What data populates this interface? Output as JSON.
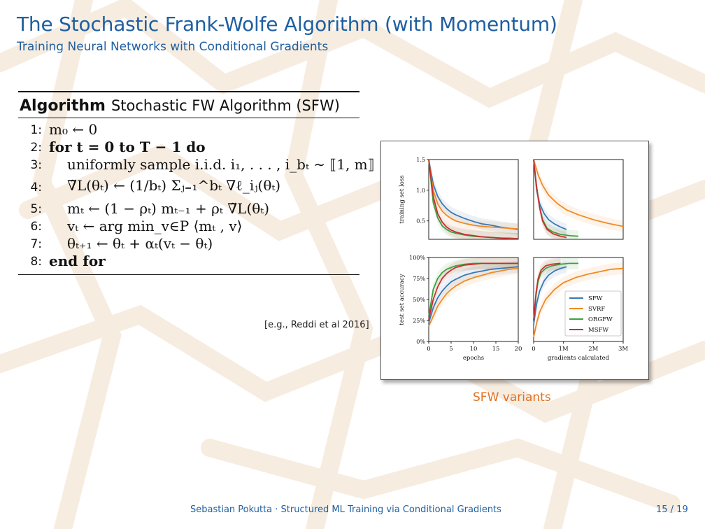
{
  "slide": {
    "title": "The Stochastic Frank-Wolfe Algorithm (with Momentum)",
    "subtitle": "Training Neural Networks with Conditional Gradients",
    "citation": "[e.g., Reddi et al 2016]",
    "caption": "SFW variants",
    "footer": "Sebastian Pokutta · Structured ML Training via Conditional Gradients",
    "page": "15 / 19"
  },
  "algorithm": {
    "keyword": "Algorithm",
    "name": "Stochastic FW Algorithm (SFW)",
    "lines": [
      {
        "num": "1:",
        "code": "m₀ ← 0"
      },
      {
        "num": "2:",
        "code": "for t = 0 to T − 1 do"
      },
      {
        "num": "3:",
        "code": "uniformly sample i.i.d. i₁, . . . , i_bₜ ∼ ⟦1, m⟧"
      },
      {
        "num": "4:",
        "code": "∇̃L(θₜ) ← (1/bₜ) Σⱼ₌₁^bₜ ∇ℓ_iⱼ(θₜ)"
      },
      {
        "num": "5:",
        "code": "mₜ ← (1 − ρₜ) mₜ₋₁ + ρₜ ∇̃L(θₜ)"
      },
      {
        "num": "6:",
        "code": "vₜ ← arg min_v∈P ⟨mₜ , v⟩"
      },
      {
        "num": "7:",
        "code": "θₜ₊₁ ← θₜ + αₜ(vₜ − θₜ)"
      },
      {
        "num": "8:",
        "code": "end for"
      }
    ]
  },
  "chart_data": [
    {
      "type": "line",
      "panel": "top-left",
      "xlabel": "",
      "ylabel": "training set loss",
      "xlim": [
        0,
        20
      ],
      "ylim": [
        0.2,
        1.5
      ],
      "yticks": [
        "1.5",
        "1.0",
        "0.5"
      ],
      "xticks": [],
      "series": [
        {
          "name": "SFW",
          "color": "#3a78b5",
          "x": [
            0,
            1,
            2,
            3,
            4,
            5,
            6,
            8,
            10,
            12,
            14,
            16,
            18,
            20
          ],
          "y": [
            1.5,
            1.1,
            0.9,
            0.78,
            0.7,
            0.64,
            0.6,
            0.54,
            0.49,
            0.45,
            0.43,
            0.4,
            0.38,
            0.36
          ]
        },
        {
          "name": "SVRF",
          "color": "#f08a24",
          "x": [
            0,
            1,
            2,
            3,
            4,
            5,
            6,
            8,
            10,
            12,
            14,
            16,
            18,
            20
          ],
          "y": [
            1.5,
            1.0,
            0.78,
            0.66,
            0.59,
            0.54,
            0.5,
            0.46,
            0.43,
            0.41,
            0.4,
            0.39,
            0.38,
            0.37
          ]
        },
        {
          "name": "ORGFW",
          "color": "#3da13d",
          "x": [
            0,
            1,
            2,
            3,
            4,
            5,
            6,
            8,
            10,
            12,
            14,
            16,
            18,
            20
          ],
          "y": [
            1.5,
            0.8,
            0.55,
            0.42,
            0.36,
            0.32,
            0.3,
            0.27,
            0.25,
            0.24,
            0.23,
            0.22,
            0.22,
            0.21
          ]
        },
        {
          "name": "MSFW",
          "color": "#c8302e",
          "x": [
            0,
            1,
            2,
            3,
            4,
            5,
            6,
            8,
            10,
            12,
            14,
            16,
            18,
            20
          ],
          "y": [
            1.5,
            0.9,
            0.62,
            0.48,
            0.4,
            0.35,
            0.32,
            0.28,
            0.26,
            0.24,
            0.23,
            0.22,
            0.21,
            0.21
          ]
        }
      ]
    },
    {
      "type": "line",
      "panel": "top-right",
      "xlabel": "",
      "ylabel": "",
      "xlim": [
        0,
        3000000
      ],
      "ylim": [
        0.2,
        1.5
      ],
      "yticks": [],
      "xticks": [],
      "series": [
        {
          "name": "SFW",
          "color": "#3a78b5",
          "x": [
            0,
            100000,
            200000,
            350000,
            500000,
            700000,
            900000,
            1100000
          ],
          "y": [
            1.5,
            1.0,
            0.78,
            0.62,
            0.52,
            0.45,
            0.4,
            0.36
          ]
        },
        {
          "name": "SVRF",
          "color": "#f08a24",
          "x": [
            0,
            150000,
            300000,
            500000,
            800000,
            1100000,
            1500000,
            2000000,
            2500000,
            3000000
          ],
          "y": [
            1.5,
            1.25,
            1.08,
            0.92,
            0.78,
            0.68,
            0.6,
            0.52,
            0.46,
            0.41
          ]
        },
        {
          "name": "ORGFW",
          "color": "#3da13d",
          "x": [
            0,
            100000,
            200000,
            300000,
            450000,
            650000,
            900000,
            1200000,
            1500000
          ],
          "y": [
            1.5,
            1.05,
            0.72,
            0.52,
            0.38,
            0.32,
            0.28,
            0.26,
            0.25
          ]
        },
        {
          "name": "MSFW",
          "color": "#c8302e",
          "x": [
            0,
            100000,
            200000,
            300000,
            450000,
            650000,
            900000,
            1100000
          ],
          "y": [
            1.5,
            1.05,
            0.72,
            0.5,
            0.36,
            0.29,
            0.25,
            0.23
          ]
        }
      ]
    },
    {
      "type": "line",
      "panel": "bottom-left",
      "xlabel": "epochs",
      "ylabel": "test set accuracy",
      "xlim": [
        0,
        20
      ],
      "ylim": [
        0,
        100
      ],
      "yticks": [
        "100%",
        "75%",
        "50%",
        "25%",
        "0%"
      ],
      "xticks": [
        "0",
        "5",
        "10",
        "15",
        "20"
      ],
      "series": [
        {
          "name": "SFW",
          "color": "#3a78b5",
          "x": [
            0,
            1,
            2,
            3,
            4,
            5,
            6,
            8,
            10,
            12,
            14,
            16,
            18,
            20
          ],
          "y": [
            22,
            40,
            52,
            60,
            66,
            71,
            74,
            79,
            82,
            84,
            86,
            87,
            88,
            89
          ]
        },
        {
          "name": "SVRF",
          "color": "#f08a24",
          "x": [
            0,
            1,
            2,
            3,
            4,
            5,
            6,
            8,
            10,
            12,
            14,
            16,
            18,
            20
          ],
          "y": [
            18,
            30,
            42,
            50,
            57,
            62,
            66,
            72,
            76,
            79,
            82,
            84,
            86,
            87
          ]
        },
        {
          "name": "ORGFW",
          "color": "#3da13d",
          "x": [
            0,
            1,
            2,
            3,
            4,
            5,
            6,
            8,
            10,
            12,
            14,
            16,
            18,
            20
          ],
          "y": [
            30,
            62,
            75,
            82,
            86,
            88,
            90,
            92,
            93,
            93,
            93,
            93,
            93,
            93
          ]
        },
        {
          "name": "MSFW",
          "color": "#c8302e",
          "x": [
            0,
            1,
            2,
            3,
            4,
            5,
            6,
            8,
            10,
            12,
            14,
            16,
            18,
            20
          ],
          "y": [
            26,
            50,
            65,
            75,
            81,
            85,
            88,
            91,
            92,
            93,
            93,
            93,
            93,
            93
          ]
        }
      ]
    },
    {
      "type": "line",
      "panel": "bottom-right",
      "xlabel": "gradients calculated",
      "ylabel": "",
      "xlim": [
        0,
        3000000
      ],
      "ylim": [
        0,
        100
      ],
      "yticks": [],
      "xticks": [
        "0",
        "1M",
        "2M",
        "3M"
      ],
      "legend": {
        "position": "lower-right",
        "entries": [
          "SFW",
          "SVRF",
          "ORGFW",
          "MSFW"
        ]
      },
      "series": [
        {
          "name": "SFW",
          "color": "#3a78b5",
          "x": [
            0,
            100000,
            200000,
            350000,
            500000,
            700000,
            900000,
            1100000
          ],
          "y": [
            20,
            45,
            60,
            72,
            79,
            84,
            87,
            89
          ]
        },
        {
          "name": "SVRF",
          "color": "#f08a24",
          "x": [
            0,
            100000,
            200000,
            400000,
            700000,
            1000000,
            1400000,
            1800000,
            2200000,
            2600000,
            3000000
          ],
          "y": [
            5,
            22,
            35,
            50,
            62,
            70,
            76,
            80,
            83,
            86,
            87
          ]
        },
        {
          "name": "ORGFW",
          "color": "#3da13d",
          "x": [
            0,
            80000,
            150000,
            250000,
            400000,
            600000,
            900000,
            1200000,
            1500000
          ],
          "y": [
            25,
            55,
            72,
            82,
            87,
            90,
            92,
            93,
            93
          ]
        },
        {
          "name": "MSFW",
          "color": "#c8302e",
          "x": [
            0,
            80000,
            150000,
            250000,
            400000,
            600000,
            900000
          ],
          "y": [
            25,
            58,
            75,
            85,
            90,
            92,
            93
          ]
        }
      ]
    }
  ]
}
